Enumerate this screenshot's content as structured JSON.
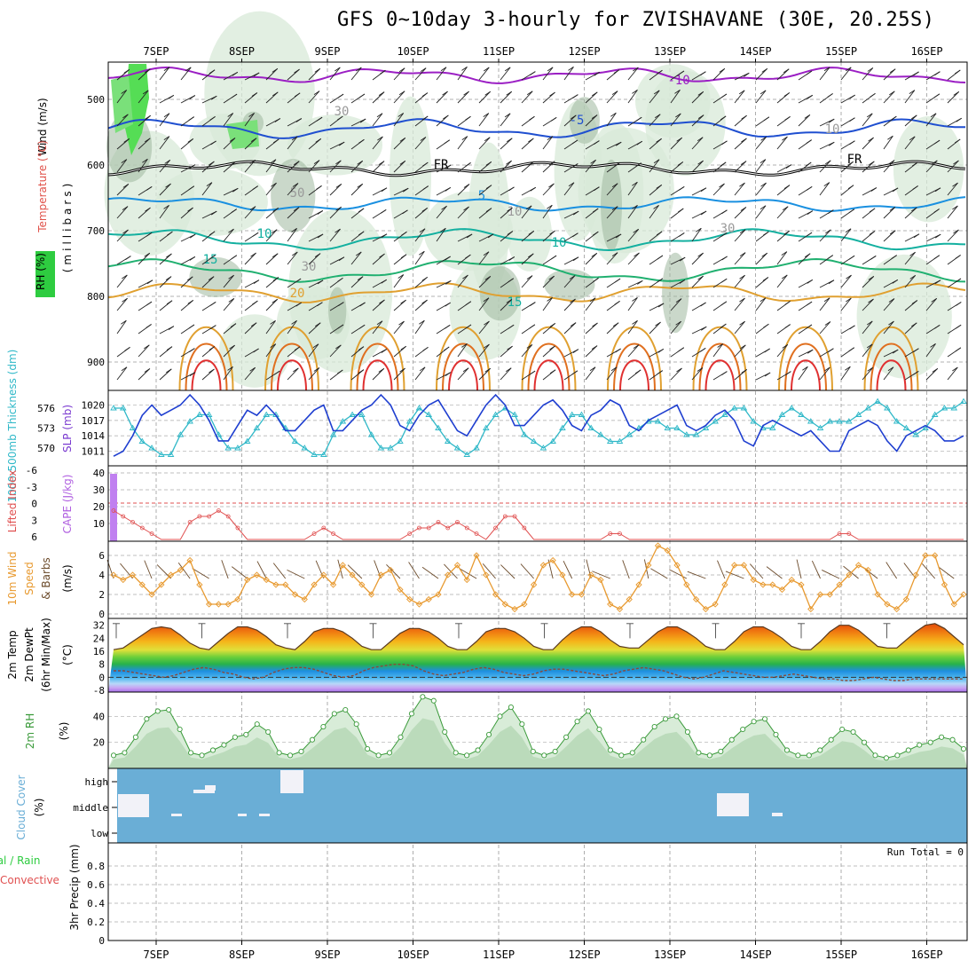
{
  "title": "GFS 0~10day 3-hourly for ZVISHAVANE (30E, 20.25S)",
  "dates": [
    "7SEP",
    "8SEP",
    "9SEP",
    "10SEP",
    "11SEP",
    "12SEP",
    "13SEP",
    "14SEP",
    "15SEP",
    "16SEP"
  ],
  "colors": {
    "rh_fill": "#2ecc40",
    "temp_label": "#e0524a",
    "wind_label": "#000000",
    "cloud_blue": "#6aaed6",
    "slp_blue": "#1f3fd0",
    "thick_cyan": "#2fb8c8",
    "cape_purple": "#c080f0",
    "li_red": "#e05050",
    "wind10_orange": "#e89a30",
    "rh2m_green": "#3a9a3a"
  },
  "panels": {
    "upper": {
      "label_wind": "Wind (m/s)",
      "label_temp": "Temperature (°C)",
      "label_rh": "RH (%)",
      "label_pressure": "(millibars)",
      "yticks": [
        "500",
        "600",
        "700",
        "800",
        "900"
      ],
      "contour_labels": [
        "-10",
        "-5",
        "FR",
        "FR",
        "5",
        "10",
        "10",
        "15",
        "15",
        "20",
        "30",
        "30",
        "30",
        "50",
        "10",
        "10"
      ]
    },
    "slp": {
      "label_thick": "1000-500mb Thickness (dm)",
      "label_slp": "SLP (mb)",
      "thick_ticks": [
        "576",
        "573",
        "570"
      ],
      "slp_ticks": [
        "1020",
        "1017",
        "1014",
        "1011"
      ]
    },
    "cape": {
      "label_li": "Lifted Index",
      "label_cape": "CAPE (J/kg)",
      "li_ticks": [
        "-6",
        "-3",
        "0",
        "3",
        "6"
      ],
      "cape_ticks": [
        "40",
        "30",
        "20",
        "10"
      ]
    },
    "wind10": {
      "label_a": "10m Wind",
      "label_b": "Speed",
      "label_c": "& Barbs",
      "label_unit": "(m/s)",
      "yticks": [
        "6",
        "4",
        "2",
        "0"
      ]
    },
    "temp2m": {
      "label_a": "2m Temp",
      "label_b": "2m DewPt",
      "label_c": "(6hr Min/Max)",
      "label_unit": "(°C)",
      "yticks": [
        "32",
        "24",
        "16",
        "8",
        "0",
        "-8"
      ]
    },
    "rh2m": {
      "label": "2m RH",
      "label_unit": "(%)",
      "yticks": [
        "40",
        "20"
      ]
    },
    "cloud": {
      "label": "Cloud Cover",
      "label_unit": "(%)",
      "levels": [
        "high",
        "middle",
        "low"
      ]
    },
    "precip": {
      "label_a": "tal / Rain",
      "label_b": "Convective",
      "label_c": "3hr Precip (mm)",
      "yticks": [
        "0.8",
        "0.6",
        "0.4",
        "0.2",
        "0"
      ],
      "run_total": "Run Total = 0"
    }
  },
  "chart_data": [
    {
      "type": "line",
      "title": "SLP (mb)",
      "ylim": [
        1009,
        1022
      ],
      "series": [
        {
          "name": "SLP (mb)",
          "values": [
            1010,
            1011,
            1014,
            1018,
            1020,
            1018,
            1019,
            1020,
            1022,
            1020,
            1017,
            1013,
            1013,
            1016,
            1019,
            1018,
            1020,
            1018,
            1015,
            1015,
            1017,
            1019,
            1020,
            1015,
            1015,
            1017,
            1019,
            1020,
            1022,
            1020,
            1016,
            1015,
            1018,
            1020,
            1021,
            1018,
            1015,
            1014,
            1017,
            1020,
            1022,
            1020,
            1016,
            1016,
            1018,
            1020,
            1021,
            1019,
            1016,
            1015,
            1018,
            1019,
            1021,
            1020,
            1016,
            1015,
            1017,
            1018,
            1019,
            1020,
            1016,
            1015,
            1016,
            1018,
            1019,
            1017,
            1013,
            1012,
            1016,
            1017,
            1016,
            1015,
            1014,
            1015,
            1013,
            1011,
            1011,
            1015,
            1016,
            1017,
            1016,
            1013,
            1011,
            1014,
            1015,
            1016,
            1015,
            1013,
            1013,
            1014
          ]
        }
      ]
    },
    {
      "type": "line",
      "title": "1000-500mb Thickness (dm)",
      "ylim": [
        568,
        578
      ],
      "series": [
        {
          "name": "1000-500mb Thickness (dm)",
          "values": [
            576,
            576,
            573,
            571,
            570,
            569,
            569,
            572,
            574,
            575,
            575,
            572,
            570,
            570,
            571,
            573,
            575,
            575,
            573,
            571,
            570,
            569,
            569,
            572,
            574,
            575,
            575,
            572,
            570,
            570,
            571,
            574,
            576,
            575,
            573,
            571,
            570,
            569,
            570,
            573,
            575,
            576,
            575,
            572,
            571,
            570,
            571,
            573,
            575,
            575,
            573,
            572,
            571,
            571,
            572,
            573,
            574,
            574,
            573,
            573,
            572,
            572,
            573,
            574,
            575,
            576,
            576,
            574,
            573,
            573,
            575,
            576,
            575,
            574,
            573,
            574,
            574,
            574,
            575,
            576,
            577,
            576,
            574,
            573,
            572,
            573,
            575,
            576,
            576,
            577
          ]
        }
      ]
    },
    {
      "type": "bar",
      "title": "CAPE (J/kg)",
      "ylim": [
        0,
        40
      ],
      "series": [
        {
          "name": "CAPE",
          "values": [
            38,
            0,
            0,
            0,
            0,
            0,
            0,
            0,
            0,
            0
          ]
        }
      ]
    },
    {
      "type": "line",
      "title": "Lifted Index",
      "ylim": [
        -6,
        6
      ],
      "series": [
        {
          "name": "Lifted Index",
          "values": [
            1,
            2,
            3,
            4,
            5,
            6,
            6,
            6,
            3,
            2,
            2,
            1,
            2,
            4,
            6,
            6,
            6,
            6,
            6,
            6,
            6,
            5,
            4,
            5,
            6,
            6,
            6,
            6,
            6,
            6,
            6,
            5,
            4,
            4,
            3,
            4,
            3,
            4,
            5,
            6,
            4,
            2,
            2,
            4,
            6,
            6,
            6,
            6,
            6,
            6,
            6,
            6,
            5,
            5,
            6,
            6,
            6,
            6,
            6,
            6,
            6,
            6,
            6,
            6,
            6,
            6,
            6,
            6,
            6,
            6,
            6,
            6,
            6,
            6,
            6,
            6,
            5,
            5,
            6,
            6,
            6,
            6,
            6,
            6,
            6,
            6,
            6,
            6,
            6,
            6
          ]
        }
      ]
    },
    {
      "type": "line",
      "title": "10m Wind Speed (m/s)",
      "ylim": [
        0,
        7
      ],
      "series": [
        {
          "name": "10m Wind Speed",
          "values": [
            4,
            3.5,
            4,
            3,
            2,
            3,
            4,
            4.5,
            5.5,
            3,
            1,
            1,
            1,
            1.5,
            3.5,
            4,
            3.5,
            3,
            3,
            2,
            1.5,
            3,
            4,
            3,
            5,
            4,
            3,
            2,
            4,
            4.5,
            2.5,
            1.5,
            1,
            1.5,
            2,
            4,
            5,
            3.5,
            6,
            4,
            2,
            1,
            0.5,
            1,
            3,
            5,
            5.5,
            4,
            2,
            2,
            4,
            3.5,
            1,
            0.5,
            1.5,
            3,
            5,
            7,
            6.5,
            5,
            3,
            1.5,
            0.5,
            1,
            3,
            5,
            5,
            3.5,
            3,
            3,
            2.5,
            3.5,
            3,
            0.5,
            2,
            2,
            3,
            4,
            5,
            4.5,
            2,
            1,
            0.5,
            1.5,
            4,
            6,
            6,
            3,
            1,
            2
          ]
        }
      ]
    },
    {
      "type": "area",
      "title": "2m Temp (°C)",
      "ylim": [
        -8,
        34
      ],
      "series": [
        {
          "name": "2m Temp",
          "values": [
            17,
            18,
            22,
            26,
            30,
            31,
            30,
            26,
            21,
            18,
            17,
            22,
            27,
            31,
            31,
            29,
            25,
            20,
            18,
            17,
            22,
            28,
            30,
            30,
            28,
            24,
            19,
            17,
            17,
            22,
            27,
            30,
            30,
            28,
            24,
            19,
            17,
            17,
            22,
            28,
            30,
            30,
            28,
            24,
            19,
            17,
            17,
            23,
            28,
            31,
            31,
            28,
            23,
            19,
            18,
            18,
            23,
            28,
            31,
            31,
            28,
            24,
            19,
            17,
            17,
            22,
            28,
            31,
            31,
            28,
            24,
            19,
            17,
            17,
            22,
            28,
            32,
            32,
            29,
            24,
            19,
            18,
            18,
            23,
            28,
            32,
            33,
            30,
            25,
            20
          ]
        },
        {
          "name": "2m DewPt",
          "values": [
            4,
            4,
            3,
            2,
            1,
            0,
            1,
            3,
            5,
            6,
            5,
            3,
            2,
            0,
            -1,
            0,
            3,
            5,
            6,
            6,
            5,
            3,
            1,
            0,
            1,
            4,
            6,
            7,
            8,
            8,
            7,
            4,
            2,
            1,
            2,
            3,
            5,
            6,
            5,
            3,
            2,
            1,
            2,
            4,
            5,
            5,
            4,
            3,
            2,
            1,
            2,
            4,
            5,
            6,
            5,
            4,
            2,
            0,
            -1,
            0,
            2,
            4,
            3,
            2,
            1,
            0,
            0,
            1,
            2,
            1,
            0,
            -1,
            -1,
            -2,
            -2,
            -1,
            0,
            -1,
            -2,
            -2,
            -1,
            -1,
            -1,
            -1,
            -1,
            -1
          ]
        }
      ]
    },
    {
      "type": "area",
      "title": "2m RH (%)",
      "ylim": [
        0,
        60
      ],
      "series": [
        {
          "name": "2m RH",
          "values": [
            10,
            12,
            24,
            38,
            44,
            45,
            30,
            12,
            10,
            14,
            18,
            24,
            26,
            34,
            28,
            12,
            10,
            13,
            22,
            32,
            42,
            45,
            34,
            15,
            10,
            12,
            24,
            42,
            55,
            52,
            28,
            12,
            10,
            14,
            26,
            40,
            47,
            34,
            13,
            10,
            13,
            24,
            36,
            44,
            30,
            14,
            10,
            12,
            22,
            32,
            38,
            40,
            28,
            12,
            10,
            13,
            22,
            30,
            36,
            38,
            26,
            14,
            10,
            10,
            14,
            22,
            30,
            28,
            20,
            10,
            8,
            10,
            14,
            18,
            20,
            24,
            22,
            15
          ]
        }
      ]
    },
    {
      "type": "table",
      "title": "Cloud Cover (%)",
      "levels": [
        "high",
        "middle",
        "low"
      ],
      "note": "mostly clear with patches of middle/high cloud near 7SEP, 8SEP, 8.5SEP and 13.5SEP"
    },
    {
      "type": "bar",
      "title": "3hr Precip (mm)",
      "ylim": [
        0,
        1
      ],
      "series": [
        {
          "name": "3hr Precip",
          "values": [
            0,
            0,
            0,
            0,
            0,
            0,
            0,
            0,
            0,
            0
          ]
        }
      ]
    }
  ]
}
